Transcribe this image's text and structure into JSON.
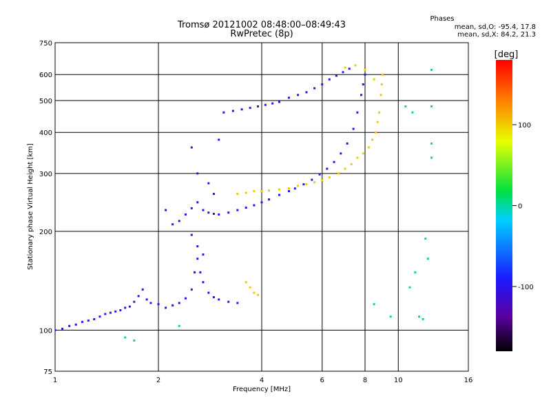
{
  "chart_data": {
    "type": "scatter",
    "title": "Tromsø 20121002 08:48:00–08:49:43",
    "subtitle": "RwPretec (8p)",
    "xlabel": "Frequency [MHz]",
    "ylabel": "Stationary phase Virtual Height [km]",
    "x_scale": "log",
    "y_scale": "log",
    "xlim": [
      1,
      16
    ],
    "ylim": [
      75,
      750
    ],
    "x_ticks": [
      1,
      2,
      4,
      6,
      8,
      10,
      16
    ],
    "x_tick_labels": [
      "1",
      "2",
      "4",
      "6",
      "8",
      "10",
      "16"
    ],
    "y_ticks": [
      75,
      100,
      200,
      300,
      400,
      500,
      600,
      750
    ],
    "y_tick_labels": [
      "75",
      "100",
      "200",
      "300",
      "400",
      "500",
      "600",
      "750"
    ],
    "grid": true,
    "stats": {
      "heading": "Phases",
      "o_line": "mean, sd,O: -95.4, 17.8",
      "x_line": "mean, sd,X:  84.2, 21.3"
    },
    "colorbar": {
      "label": "[deg]",
      "range": [
        -180,
        180
      ],
      "ticks": [
        100,
        0,
        -100
      ],
      "tick_labels": [
        "100",
        "0",
        "-100"
      ]
    },
    "series": [
      {
        "mode": "O",
        "phase_deg": -100,
        "points": [
          [
            1.0,
            100
          ],
          [
            1.05,
            101
          ],
          [
            1.1,
            103
          ],
          [
            1.15,
            104
          ],
          [
            1.2,
            106
          ],
          [
            1.25,
            107
          ],
          [
            1.3,
            108
          ],
          [
            1.35,
            110
          ],
          [
            1.4,
            112
          ],
          [
            1.45,
            113
          ],
          [
            1.5,
            114
          ],
          [
            1.55,
            115
          ],
          [
            1.6,
            117
          ],
          [
            1.65,
            118
          ],
          [
            1.7,
            122
          ],
          [
            1.75,
            127
          ],
          [
            1.8,
            133
          ],
          [
            1.85,
            124
          ],
          [
            1.9,
            121
          ],
          [
            2.0,
            120
          ],
          [
            2.1,
            117
          ],
          [
            2.2,
            119
          ],
          [
            2.3,
            121
          ],
          [
            2.4,
            125
          ],
          [
            2.5,
            133
          ],
          [
            2.55,
            150
          ],
          [
            2.6,
            165
          ],
          [
            2.65,
            150
          ],
          [
            2.7,
            140
          ],
          [
            2.8,
            130
          ],
          [
            2.9,
            126
          ],
          [
            3.0,
            124
          ],
          [
            3.2,
            122
          ],
          [
            3.4,
            121
          ],
          [
            2.2,
            210
          ],
          [
            2.3,
            215
          ],
          [
            2.4,
            225
          ],
          [
            2.5,
            235
          ],
          [
            2.6,
            245
          ],
          [
            2.7,
            232
          ],
          [
            2.8,
            228
          ],
          [
            2.9,
            226
          ],
          [
            3.0,
            225
          ],
          [
            3.2,
            228
          ],
          [
            3.4,
            232
          ],
          [
            3.6,
            236
          ],
          [
            3.8,
            240
          ],
          [
            4.0,
            245
          ],
          [
            4.2,
            250
          ],
          [
            4.5,
            258
          ],
          [
            4.8,
            265
          ],
          [
            5.0,
            270
          ],
          [
            5.3,
            278
          ],
          [
            5.6,
            287
          ],
          [
            5.9,
            298
          ],
          [
            6.2,
            310
          ],
          [
            6.5,
            325
          ],
          [
            6.8,
            345
          ],
          [
            7.1,
            370
          ],
          [
            7.4,
            410
          ],
          [
            7.6,
            460
          ],
          [
            7.8,
            520
          ],
          [
            7.9,
            560
          ],
          [
            8.0,
            600
          ],
          [
            3.1,
            460
          ],
          [
            3.3,
            465
          ],
          [
            3.5,
            470
          ],
          [
            3.7,
            475
          ],
          [
            3.9,
            480
          ],
          [
            4.1,
            485
          ],
          [
            4.3,
            490
          ],
          [
            4.5,
            495
          ],
          [
            4.8,
            510
          ],
          [
            5.1,
            520
          ],
          [
            5.4,
            530
          ],
          [
            5.7,
            545
          ],
          [
            6.0,
            560
          ],
          [
            6.3,
            580
          ],
          [
            6.6,
            595
          ],
          [
            6.9,
            610
          ],
          [
            7.2,
            625
          ],
          [
            2.5,
            360
          ],
          [
            2.6,
            300
          ],
          [
            2.8,
            280
          ],
          [
            2.9,
            260
          ],
          [
            3.0,
            380
          ],
          [
            2.1,
            232
          ],
          [
            2.5,
            195
          ],
          [
            2.6,
            180
          ],
          [
            2.7,
            170
          ]
        ]
      },
      {
        "mode": "X",
        "phase_deg": 100,
        "points": [
          [
            3.6,
            140
          ],
          [
            3.7,
            135
          ],
          [
            3.8,
            130
          ],
          [
            3.9,
            128
          ],
          [
            3.4,
            260
          ],
          [
            3.6,
            262
          ],
          [
            3.8,
            265
          ],
          [
            4.0,
            265
          ],
          [
            4.2,
            266
          ],
          [
            4.5,
            268
          ],
          [
            4.8,
            270
          ],
          [
            5.1,
            275
          ],
          [
            5.4,
            278
          ],
          [
            5.7,
            282
          ],
          [
            6.0,
            286
          ],
          [
            6.3,
            292
          ],
          [
            6.7,
            300
          ],
          [
            7.0,
            310
          ],
          [
            7.3,
            320
          ],
          [
            7.6,
            335
          ],
          [
            7.9,
            345
          ],
          [
            8.2,
            360
          ],
          [
            8.4,
            380
          ],
          [
            8.6,
            400
          ],
          [
            8.7,
            430
          ],
          [
            8.8,
            460
          ],
          [
            8.9,
            520
          ],
          [
            8.95,
            560
          ],
          [
            9.0,
            600
          ],
          [
            7.0,
            630
          ],
          [
            7.5,
            640
          ],
          [
            8.0,
            620
          ],
          [
            8.5,
            580
          ]
        ]
      },
      {
        "mode": "sporadic",
        "phase_deg": 0,
        "points": [
          [
            1.6,
            95
          ],
          [
            1.7,
            93
          ],
          [
            2.3,
            103
          ],
          [
            10.5,
            480
          ],
          [
            11.0,
            460
          ],
          [
            12.5,
            620
          ],
          [
            12.5,
            480
          ],
          [
            11.2,
            150
          ],
          [
            10.8,
            135
          ],
          [
            11.5,
            110
          ],
          [
            11.8,
            108
          ],
          [
            12.0,
            190
          ],
          [
            12.2,
            165
          ],
          [
            12.5,
            370
          ],
          [
            12.5,
            335
          ],
          [
            8.5,
            120
          ],
          [
            9.5,
            110
          ]
        ]
      }
    ]
  }
}
